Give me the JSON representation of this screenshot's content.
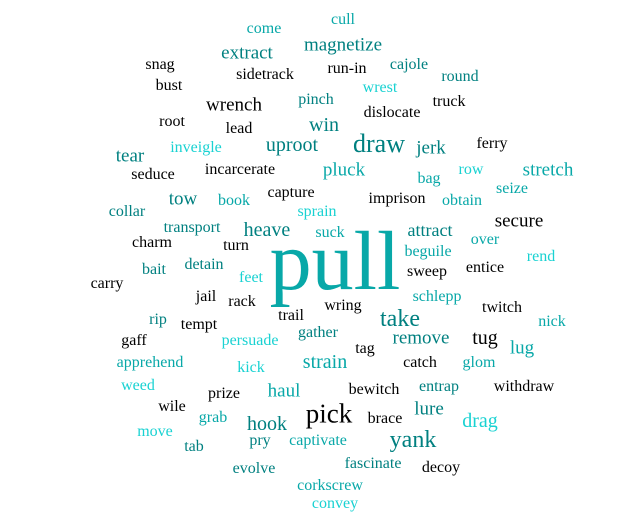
{
  "colors": {
    "black": "#000000",
    "teal": "#008080",
    "mid": "#08a8a8",
    "cyan": "#19d2d2"
  },
  "words": [
    {
      "text": "pull",
      "color": "mid"
    },
    {
      "text": "pick",
      "color": "black"
    },
    {
      "text": "draw",
      "color": "teal"
    },
    {
      "text": "take",
      "color": "teal"
    },
    {
      "text": "yank",
      "color": "teal"
    },
    {
      "text": "remove",
      "color": "teal"
    },
    {
      "text": "heave",
      "color": "teal"
    },
    {
      "text": "hook",
      "color": "teal"
    },
    {
      "text": "stretch",
      "color": "mid"
    },
    {
      "text": "secure",
      "color": "black"
    },
    {
      "text": "attract",
      "color": "teal"
    },
    {
      "text": "uproot",
      "color": "teal"
    },
    {
      "text": "pluck",
      "color": "mid"
    },
    {
      "text": "jerk",
      "color": "teal"
    },
    {
      "text": "tug",
      "color": "black"
    },
    {
      "text": "lure",
      "color": "teal"
    },
    {
      "text": "drag",
      "color": "cyan"
    },
    {
      "text": "haul",
      "color": "mid"
    },
    {
      "text": "strain",
      "color": "mid"
    },
    {
      "text": "win",
      "color": "teal"
    },
    {
      "text": "wrench",
      "color": "black"
    },
    {
      "text": "extract",
      "color": "teal"
    },
    {
      "text": "magnetize",
      "color": "teal"
    },
    {
      "text": "tear",
      "color": "teal"
    },
    {
      "text": "tow",
      "color": "teal"
    },
    {
      "text": "lug",
      "color": "mid"
    },
    {
      "text": "cull",
      "color": "mid"
    },
    {
      "text": "come",
      "color": "mid"
    },
    {
      "text": "snag",
      "color": "black"
    },
    {
      "text": "sidetrack",
      "color": "black"
    },
    {
      "text": "run-in",
      "color": "black"
    },
    {
      "text": "cajole",
      "color": "teal"
    },
    {
      "text": "bust",
      "color": "black"
    },
    {
      "text": "wrest",
      "color": "cyan"
    },
    {
      "text": "round",
      "color": "teal"
    },
    {
      "text": "pinch",
      "color": "teal"
    },
    {
      "text": "truck",
      "color": "black"
    },
    {
      "text": "dislocate",
      "color": "black"
    },
    {
      "text": "root",
      "color": "black"
    },
    {
      "text": "lead",
      "color": "black"
    },
    {
      "text": "ferry",
      "color": "black"
    },
    {
      "text": "inveigle",
      "color": "cyan"
    },
    {
      "text": "incarcerate",
      "color": "black"
    },
    {
      "text": "row",
      "color": "cyan"
    },
    {
      "text": "seduce",
      "color": "black"
    },
    {
      "text": "bag",
      "color": "mid"
    },
    {
      "text": "seize",
      "color": "mid"
    },
    {
      "text": "capture",
      "color": "black"
    },
    {
      "text": "imprison",
      "color": "black"
    },
    {
      "text": "book",
      "color": "mid"
    },
    {
      "text": "obtain",
      "color": "mid"
    },
    {
      "text": "collar",
      "color": "teal"
    },
    {
      "text": "sprain",
      "color": "cyan"
    },
    {
      "text": "transport",
      "color": "teal"
    },
    {
      "text": "suck",
      "color": "mid"
    },
    {
      "text": "charm",
      "color": "black"
    },
    {
      "text": "turn",
      "color": "black"
    },
    {
      "text": "over",
      "color": "mid"
    },
    {
      "text": "beguile",
      "color": "mid"
    },
    {
      "text": "rend",
      "color": "cyan"
    },
    {
      "text": "bait",
      "color": "teal"
    },
    {
      "text": "detain",
      "color": "teal"
    },
    {
      "text": "feet",
      "color": "cyan"
    },
    {
      "text": "sweep",
      "color": "black"
    },
    {
      "text": "entice",
      "color": "black"
    },
    {
      "text": "carry",
      "color": "black"
    },
    {
      "text": "jail",
      "color": "black"
    },
    {
      "text": "rack",
      "color": "black"
    },
    {
      "text": "schlepp",
      "color": "mid"
    },
    {
      "text": "twitch",
      "color": "black"
    },
    {
      "text": "trail",
      "color": "black"
    },
    {
      "text": "wring",
      "color": "black"
    },
    {
      "text": "rip",
      "color": "teal"
    },
    {
      "text": "tempt",
      "color": "black"
    },
    {
      "text": "nick",
      "color": "mid"
    },
    {
      "text": "gaff",
      "color": "black"
    },
    {
      "text": "persuade",
      "color": "cyan"
    },
    {
      "text": "gather",
      "color": "teal"
    },
    {
      "text": "tag",
      "color": "black"
    },
    {
      "text": "catch",
      "color": "black"
    },
    {
      "text": "apprehend",
      "color": "mid"
    },
    {
      "text": "glom",
      "color": "mid"
    },
    {
      "text": "kick",
      "color": "cyan"
    },
    {
      "text": "weed",
      "color": "cyan"
    },
    {
      "text": "prize",
      "color": "black"
    },
    {
      "text": "bewitch",
      "color": "black"
    },
    {
      "text": "entrap",
      "color": "teal"
    },
    {
      "text": "withdraw",
      "color": "black"
    },
    {
      "text": "wile",
      "color": "black"
    },
    {
      "text": "grab",
      "color": "mid"
    },
    {
      "text": "brace",
      "color": "black"
    },
    {
      "text": "move",
      "color": "cyan"
    },
    {
      "text": "tab",
      "color": "teal"
    },
    {
      "text": "pry",
      "color": "teal"
    },
    {
      "text": "captivate",
      "color": "mid"
    },
    {
      "text": "evolve",
      "color": "teal"
    },
    {
      "text": "fascinate",
      "color": "teal"
    },
    {
      "text": "decoy",
      "color": "black"
    },
    {
      "text": "corkscrew",
      "color": "mid"
    },
    {
      "text": "convey",
      "color": "cyan"
    }
  ]
}
